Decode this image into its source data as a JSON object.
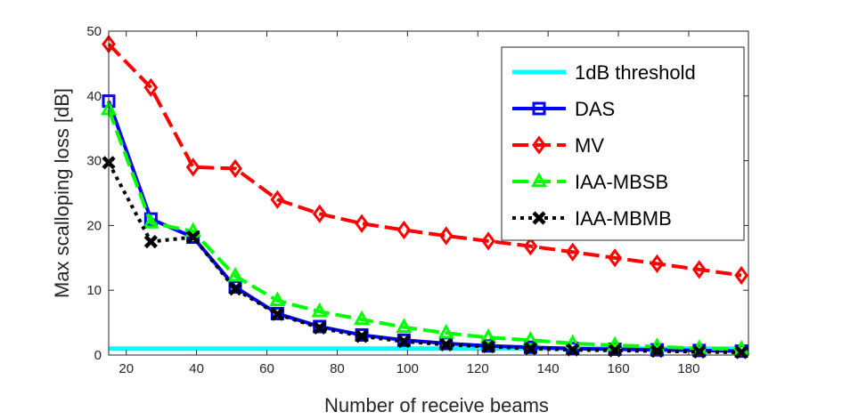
{
  "chart_data": {
    "type": "line",
    "xlabel": "Number of receive beams",
    "ylabel": "Max scalloping loss [dB]",
    "xlim": [
      15,
      197
    ],
    "ylim": [
      0,
      50
    ],
    "xticks": [
      20,
      40,
      60,
      80,
      100,
      120,
      140,
      160,
      180
    ],
    "yticks": [
      0,
      10,
      20,
      30,
      40,
      50
    ],
    "grid": false,
    "legend_position": "top-right",
    "x": [
      15,
      27,
      39,
      51,
      63,
      75,
      87,
      99,
      111,
      123,
      135,
      147,
      159,
      171,
      183,
      195
    ],
    "series": [
      {
        "name": "1dB threshold",
        "color": "#00ffff",
        "style": "solid",
        "marker": "none",
        "values": [
          1,
          1,
          1,
          1,
          1,
          1,
          1,
          1,
          1,
          1,
          1,
          1,
          1,
          1,
          1,
          1
        ]
      },
      {
        "name": "DAS",
        "color": "#0000ff",
        "style": "solid",
        "marker": "square",
        "values": [
          39.2,
          21.0,
          18.2,
          10.5,
          6.4,
          4.4,
          3.1,
          2.3,
          1.8,
          1.4,
          1.2,
          1.0,
          0.9,
          0.8,
          0.7,
          0.6
        ]
      },
      {
        "name": "MV",
        "color": "#ff0000",
        "style": "dashed",
        "marker": "diamond",
        "values": [
          48.0,
          41.3,
          29.0,
          28.8,
          24.0,
          21.8,
          20.3,
          19.3,
          18.4,
          17.6,
          16.8,
          15.9,
          15.0,
          14.1,
          13.2,
          12.3
        ]
      },
      {
        "name": "IAA-MBSB",
        "color": "#00ff00",
        "style": "dashed",
        "marker": "triangle",
        "values": [
          37.9,
          20.4,
          19.1,
          12.2,
          8.4,
          6.7,
          5.5,
          4.3,
          3.4,
          2.7,
          2.3,
          1.8,
          1.5,
          1.3,
          1.0,
          0.9
        ]
      },
      {
        "name": "IAA-MBMB",
        "color": "#000000",
        "style": "dotted",
        "marker": "x",
        "values": [
          29.7,
          17.5,
          18.2,
          10.2,
          6.3,
          4.2,
          2.9,
          2.1,
          1.6,
          1.3,
          1.0,
          0.8,
          0.7,
          0.6,
          0.5,
          0.4
        ]
      }
    ]
  }
}
